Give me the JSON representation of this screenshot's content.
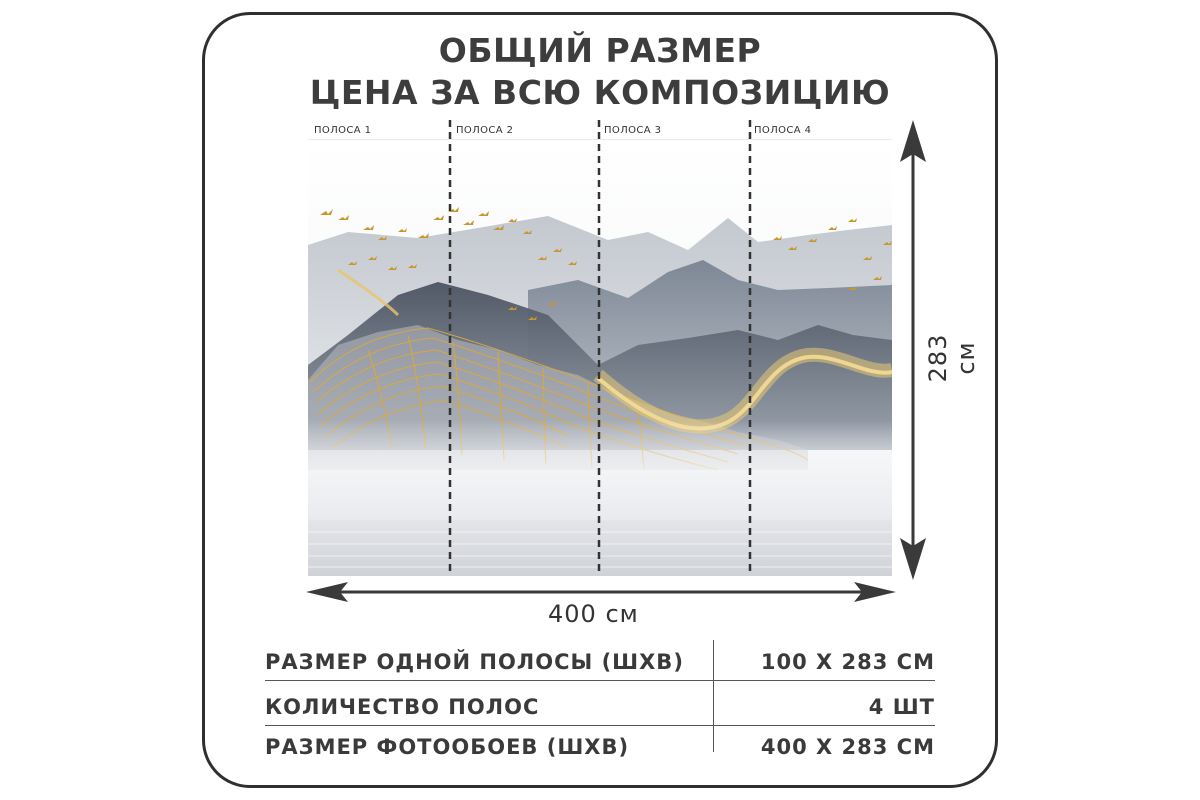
{
  "header": {
    "line1": "ОБЩИЙ РАЗМЕР",
    "line2": "ЦЕНА ЗА ВСЮ КОМПОЗИЦИЮ"
  },
  "strips": [
    {
      "label": "ПОЛОСА 1"
    },
    {
      "label": "ПОЛОСА 2"
    },
    {
      "label": "ПОЛОСА 3"
    },
    {
      "label": "ПОЛОСА 4"
    }
  ],
  "dimensions": {
    "width": "400 см",
    "height": "283 см"
  },
  "specs": [
    {
      "label": "РАЗМЕР ОДНОЙ ПОЛОСЫ (ШХВ)",
      "value": "100 Х 283 СМ"
    },
    {
      "label": "КОЛИЧЕСТВО ПОЛОС",
      "value": "4 ШТ"
    },
    {
      "label": "РАЗМЕР ФОТООБОЕВ (ШХВ)",
      "value": "400 Х 283 СМ"
    }
  ],
  "colors": {
    "gold": "#d9a93f",
    "mountain_dark": "#4f5867",
    "mountain_mid": "#8b95a3",
    "mountain_light": "#c9cdd3",
    "border": "#2f2f2f"
  }
}
